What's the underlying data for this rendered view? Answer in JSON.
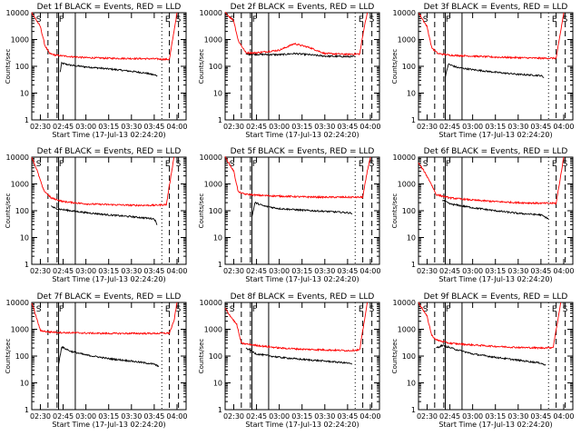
{
  "figure": {
    "ylabel": "Counts/sec",
    "xlabel": "Start Time (17-Jul-13 02:24:20)",
    "x_ticks": [
      "02:30",
      "02:45",
      "03:00",
      "03:15",
      "03:30",
      "03:45",
      "04:00"
    ],
    "y_ticks": [
      "1",
      "10",
      "100",
      "1000",
      "10000"
    ],
    "colors": {
      "events": "#000000",
      "lld": "#ff0000",
      "frame": "#000000"
    }
  },
  "chart_data": [
    {
      "type": "line",
      "title": "Det 1f BLACK = Events, RED = LLD",
      "xlabel": "Start Time (17-Jul-13 02:24:20)",
      "ylabel": "Counts/sec",
      "ylog": true,
      "ylim": [
        1,
        10000
      ],
      "xlim": [
        "02:24:20",
        "04:06:00"
      ],
      "markers": {
        "S1": "02:26:00",
        "F": "02:41:00",
        "E": "03:51:00",
        "S2": "03:58:00"
      },
      "dashed": [
        "02:35:00",
        "02:41:00",
        "03:55:00",
        "04:01:00"
      ],
      "solid": [
        "02:42:00",
        "02:53:00"
      ],
      "dotted": [
        "03:50:00"
      ],
      "series": [
        {
          "name": "Events",
          "color": "#000000",
          "x": [
            "02:43:00",
            "02:44:00",
            "02:50:00",
            "03:00:00",
            "03:10:00",
            "03:20:00",
            "03:30:00",
            "03:40:00",
            "03:47:00"
          ],
          "y": [
            60,
            130,
            110,
            95,
            85,
            75,
            65,
            55,
            45
          ]
        },
        {
          "name": "LLD",
          "color": "#ff0000",
          "x": [
            "02:24:20",
            "02:30:00",
            "02:33:00",
            "02:36:00",
            "02:40:00",
            "02:50:00",
            "03:00:00",
            "03:15:00",
            "03:30:00",
            "03:45:00",
            "03:55:00",
            "03:58:00",
            "04:00:00"
          ],
          "y": [
            10000,
            3000,
            600,
            300,
            260,
            230,
            210,
            200,
            195,
            190,
            180,
            2000,
            10000
          ]
        }
      ]
    },
    {
      "type": "line",
      "title": "Det 2f BLACK = Events, RED = LLD",
      "xlabel": "Start Time (17-Jul-13 02:24:20)",
      "ylabel": "Counts/sec",
      "ylog": true,
      "ylim": [
        1,
        10000
      ],
      "xlim": [
        "02:24:20",
        "04:06:00"
      ],
      "markers": {
        "S1": "02:26:00",
        "F": "02:41:00",
        "E": "03:51:00",
        "S2": "03:58:00"
      },
      "dashed": [
        "02:35:00",
        "02:41:00",
        "03:55:00",
        "04:01:00"
      ],
      "solid": [
        "02:42:00",
        "02:53:00"
      ],
      "dotted": [
        "03:50:00"
      ],
      "series": [
        {
          "name": "Events",
          "color": "#000000",
          "x": [
            "02:38:00",
            "02:45:00",
            "03:00:00",
            "03:10:00",
            "03:20:00",
            "03:30:00",
            "03:45:00",
            "03:50:00"
          ],
          "y": [
            280,
            280,
            270,
            300,
            270,
            240,
            230,
            230
          ]
        },
        {
          "name": "LLD",
          "color": "#ff0000",
          "x": [
            "02:24:20",
            "02:30:00",
            "02:33:00",
            "02:38:00",
            "02:45:00",
            "03:00:00",
            "03:10:00",
            "03:20:00",
            "03:30:00",
            "03:45:00",
            "03:53:00",
            "03:56:00",
            "03:58:00"
          ],
          "y": [
            10000,
            5000,
            900,
            320,
            320,
            400,
            700,
            500,
            300,
            280,
            290,
            3000,
            10000
          ]
        }
      ]
    },
    {
      "type": "line",
      "title": "Det 3f BLACK = Events, RED = LLD",
      "xlabel": "Start Time (17-Jul-13 02:24:20)",
      "ylabel": "Counts/sec",
      "ylog": true,
      "ylim": [
        1,
        10000
      ],
      "xlim": [
        "02:24:20",
        "04:06:00"
      ],
      "markers": {
        "S1": "02:26:00",
        "F": "02:41:00",
        "E": "03:51:00",
        "S2": "03:58:00"
      },
      "dashed": [
        "02:35:00",
        "02:41:00",
        "03:55:00",
        "04:01:00"
      ],
      "solid": [
        "02:42:00",
        "02:53:00"
      ],
      "dotted": [
        "03:50:00"
      ],
      "series": [
        {
          "name": "Events",
          "color": "#000000",
          "x": [
            "02:42:00",
            "02:44:00",
            "02:50:00",
            "03:00:00",
            "03:15:00",
            "03:30:00",
            "03:45:00",
            "03:47:00"
          ],
          "y": [
            40,
            120,
            90,
            75,
            60,
            50,
            45,
            38
          ]
        },
        {
          "name": "LLD",
          "color": "#ff0000",
          "x": [
            "02:24:20",
            "02:30:00",
            "02:33:00",
            "02:37:00",
            "02:45:00",
            "03:00:00",
            "03:15:00",
            "03:30:00",
            "03:45:00",
            "03:55:00",
            "03:58:00",
            "04:00:00"
          ],
          "y": [
            10000,
            3000,
            500,
            300,
            260,
            240,
            220,
            210,
            200,
            200,
            2000,
            10000
          ]
        }
      ]
    },
    {
      "type": "line",
      "title": "Det 4f BLACK = Events, RED = LLD",
      "xlabel": "Start Time (17-Jul-13 02:24:20)",
      "ylabel": "Counts/sec",
      "ylog": true,
      "ylim": [
        1,
        10000
      ],
      "xlim": [
        "02:24:20",
        "04:06:00"
      ],
      "markers": {
        "S1": "02:26:00",
        "F": "02:41:00",
        "E": "03:51:00",
        "S2": "03:58:00"
      },
      "dashed": [
        "02:35:00",
        "02:41:00",
        "03:55:00",
        "04:01:00"
      ],
      "solid": [
        "02:42:00",
        "02:53:00"
      ],
      "dotted": [
        "03:50:00"
      ],
      "series": [
        {
          "name": "Events",
          "color": "#000000",
          "x": [
            "02:37:00",
            "02:40:00",
            "02:50:00",
            "03:00:00",
            "03:15:00",
            "03:30:00",
            "03:45:00",
            "03:47:00"
          ],
          "y": [
            150,
            120,
            100,
            85,
            70,
            60,
            50,
            30
          ]
        },
        {
          "name": "LLD",
          "color": "#ff0000",
          "x": [
            "02:24:20",
            "02:28:00",
            "02:32:00",
            "02:37:00",
            "02:45:00",
            "03:00:00",
            "03:15:00",
            "03:30:00",
            "03:45:00",
            "03:53:00",
            "03:56:00",
            "03:58:00"
          ],
          "y": [
            10000,
            3000,
            600,
            300,
            220,
            180,
            170,
            160,
            160,
            170,
            2000,
            10000
          ]
        }
      ]
    },
    {
      "type": "line",
      "title": "Det 5f BLACK = Events, RED = LLD",
      "xlabel": "Start Time (17-Jul-13 02:24:20)",
      "ylabel": "Counts/sec",
      "ylog": true,
      "ylim": [
        1,
        10000
      ],
      "xlim": [
        "02:24:20",
        "04:06:00"
      ],
      "markers": {
        "S1": "02:26:00",
        "F": "02:41:00",
        "E": "03:51:00",
        "S2": "03:58:00"
      },
      "dashed": [
        "02:35:00",
        "02:41:00",
        "03:55:00",
        "04:01:00"
      ],
      "solid": [
        "02:42:00",
        "02:53:00"
      ],
      "dotted": [
        "03:50:00"
      ],
      "series": [
        {
          "name": "Events",
          "color": "#000000",
          "x": [
            "02:42:00",
            "02:44:00",
            "02:50:00",
            "03:00:00",
            "03:15:00",
            "03:30:00",
            "03:45:00",
            "03:48:00"
          ],
          "y": [
            60,
            200,
            150,
            120,
            105,
            95,
            85,
            80
          ]
        },
        {
          "name": "LLD",
          "color": "#ff0000",
          "x": [
            "02:24:20",
            "02:30:00",
            "02:33:00",
            "02:37:00",
            "02:45:00",
            "03:00:00",
            "03:15:00",
            "03:30:00",
            "03:45:00",
            "03:55:00",
            "03:58:00",
            "04:00:00"
          ],
          "y": [
            10000,
            3000,
            500,
            420,
            380,
            350,
            330,
            320,
            320,
            320,
            3000,
            10000
          ]
        }
      ]
    },
    {
      "type": "line",
      "title": "Det 6f BLACK = Events, RED = LLD",
      "xlabel": "Start Time (17-Jul-13 02:24:20)",
      "ylabel": "Counts/sec",
      "ylog": true,
      "ylim": [
        1,
        10000
      ],
      "xlim": [
        "02:24:20",
        "04:06:00"
      ],
      "markers": {
        "S1": "02:26:00",
        "F": "02:41:00",
        "E": "03:51:00",
        "S2": "03:58:00"
      },
      "dashed": [
        "02:35:00",
        "02:41:00",
        "03:55:00",
        "04:01:00"
      ],
      "solid": [
        "02:42:00",
        "02:53:00"
      ],
      "dotted": [
        "03:50:00"
      ],
      "series": [
        {
          "name": "Events",
          "color": "#000000",
          "x": [
            "02:40:00",
            "02:45:00",
            "03:00:00",
            "03:15:00",
            "03:30:00",
            "03:45:00",
            "03:50:00"
          ],
          "y": [
            250,
            180,
            130,
            100,
            80,
            70,
            50
          ]
        },
        {
          "name": "LLD",
          "color": "#ff0000",
          "x": [
            "02:24:20",
            "02:28:00",
            "02:32:00",
            "02:36:00",
            "02:45:00",
            "03:00:00",
            "03:15:00",
            "03:30:00",
            "03:45:00",
            "03:55:00",
            "03:58:00",
            "04:00:00"
          ],
          "y": [
            6000,
            3000,
            1200,
            400,
            300,
            250,
            220,
            200,
            190,
            190,
            2000,
            10000
          ]
        }
      ]
    },
    {
      "type": "line",
      "title": "Det 7f BLACK = Events, RED = LLD",
      "xlabel": "Start Time (17-Jul-13 02:24:20)",
      "ylabel": "Counts/sec",
      "ylog": true,
      "ylim": [
        1,
        10000
      ],
      "xlim": [
        "02:24:20",
        "04:06:00"
      ],
      "markers": {
        "S1": "02:26:00",
        "F": "02:41:00",
        "E": "03:51:00",
        "S2": "03:58:00"
      },
      "dashed": [
        "02:35:00",
        "02:41:00",
        "03:55:00",
        "04:01:00"
      ],
      "solid": [
        "02:42:00",
        "02:53:00"
      ],
      "dotted": [
        "03:50:00"
      ],
      "series": [
        {
          "name": "Events",
          "color": "#000000",
          "x": [
            "02:42:00",
            "02:44:00",
            "02:50:00",
            "03:00:00",
            "03:15:00",
            "03:30:00",
            "03:45:00",
            "03:48:00"
          ],
          "y": [
            50,
            220,
            150,
            110,
            80,
            65,
            50,
            40
          ]
        },
        {
          "name": "LLD",
          "color": "#ff0000",
          "x": [
            "02:24:20",
            "02:30:00",
            "02:35:00",
            "02:45:00",
            "03:00:00",
            "03:15:00",
            "03:30:00",
            "03:45:00",
            "03:55:00",
            "03:58:00",
            "04:00:00"
          ],
          "y": [
            10000,
            900,
            800,
            750,
            720,
            700,
            700,
            700,
            720,
            2000,
            10000
          ]
        }
      ]
    },
    {
      "type": "line",
      "title": "Det 8f BLACK = Events, RED = LLD",
      "xlabel": "Start Time (17-Jul-13 02:24:20)",
      "ylabel": "Counts/sec",
      "ylog": true,
      "ylim": [
        1,
        10000
      ],
      "xlim": [
        "02:24:20",
        "04:06:00"
      ],
      "markers": {
        "S1": "02:26:00",
        "F": "02:41:00",
        "E": "03:51:00",
        "S2": "03:58:00"
      },
      "dashed": [
        "02:35:00",
        "02:41:00",
        "03:55:00",
        "04:01:00"
      ],
      "solid": [
        "02:42:00",
        "02:53:00"
      ],
      "dotted": [
        "03:50:00"
      ],
      "series": [
        {
          "name": "Events",
          "color": "#000000",
          "x": [
            "02:38:00",
            "02:45:00",
            "03:00:00",
            "03:15:00",
            "03:30:00",
            "03:45:00",
            "03:48:00"
          ],
          "y": [
            200,
            120,
            90,
            75,
            65,
            55,
            50
          ]
        },
        {
          "name": "LLD",
          "color": "#ff0000",
          "x": [
            "02:24:20",
            "02:28:00",
            "02:32:00",
            "02:35:00",
            "02:45:00",
            "03:00:00",
            "03:15:00",
            "03:30:00",
            "03:45:00",
            "03:53:00",
            "03:56:00",
            "03:58:00"
          ],
          "y": [
            6000,
            3000,
            1500,
            300,
            250,
            200,
            180,
            170,
            160,
            170,
            2000,
            10000
          ]
        }
      ]
    },
    {
      "type": "line",
      "title": "Det 9f BLACK = Events, RED = LLD",
      "xlabel": "Start Time (17-Jul-13 02:24:20)",
      "ylabel": "Counts/sec",
      "ylog": true,
      "ylim": [
        1,
        10000
      ],
      "xlim": [
        "02:24:20",
        "04:06:00"
      ],
      "markers": {
        "S1": "02:26:00",
        "F": "02:41:00",
        "E": "03:51:00",
        "S2": "03:58:00"
      },
      "dashed": [
        "02:35:00",
        "02:41:00",
        "03:55:00",
        "04:01:00"
      ],
      "solid": [
        "02:42:00",
        "02:53:00"
      ],
      "dotted": [
        "03:50:00"
      ],
      "series": [
        {
          "name": "Events",
          "color": "#000000",
          "x": [
            "02:36:00",
            "02:40:00",
            "02:50:00",
            "03:00:00",
            "03:15:00",
            "03:30:00",
            "03:45:00",
            "03:48:00"
          ],
          "y": [
            200,
            250,
            170,
            120,
            90,
            70,
            55,
            45
          ]
        },
        {
          "name": "LLD",
          "color": "#ff0000",
          "x": [
            "02:24:20",
            "02:30:00",
            "02:33:00",
            "02:36:00",
            "02:45:00",
            "03:00:00",
            "03:15:00",
            "03:30:00",
            "03:45:00",
            "03:53:00",
            "03:56:00",
            "03:58:00"
          ],
          "y": [
            10000,
            3000,
            600,
            400,
            300,
            260,
            230,
            210,
            200,
            210,
            2000,
            10000
          ]
        }
      ]
    }
  ]
}
